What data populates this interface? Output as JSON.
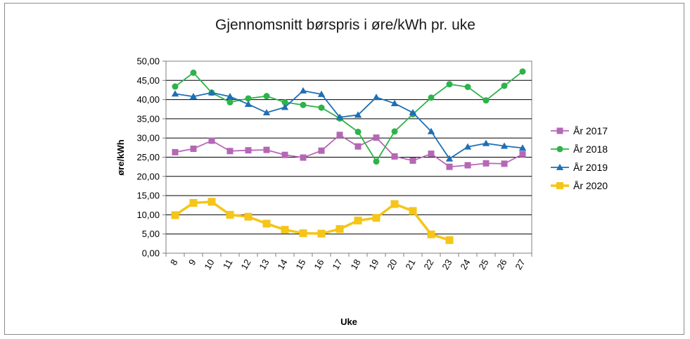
{
  "chart_data": {
    "type": "line",
    "title": "Gjennomsnitt børspris i øre/kWh pr. uke",
    "xlabel": "Uke",
    "ylabel": "øre/kWh",
    "ylim": [
      0,
      50
    ],
    "y_ticks": [
      "0,00",
      "5,00",
      "10,00",
      "15,00",
      "20,00",
      "25,00",
      "30,00",
      "35,00",
      "40,00",
      "45,00",
      "50,00"
    ],
    "grid": true,
    "legend_position": "right",
    "categories": [
      "8",
      "9",
      "10",
      "11",
      "12",
      "13",
      "14",
      "15",
      "16",
      "17",
      "18",
      "19",
      "20",
      "21",
      "22",
      "23",
      "24",
      "25",
      "26",
      "27"
    ],
    "series": [
      {
        "name": "År 2017",
        "color": "#b567b5",
        "marker": "square",
        "values": [
          26.3,
          27.2,
          29.3,
          26.6,
          26.8,
          26.9,
          25.6,
          24.9,
          26.7,
          30.8,
          27.8,
          30.1,
          25.2,
          24.1,
          25.9,
          22.5,
          22.9,
          23.4,
          23.3,
          25.8
        ]
      },
      {
        "name": "År 2018",
        "color": "#2eb24a",
        "marker": "circle",
        "values": [
          43.4,
          47.0,
          41.8,
          39.3,
          40.3,
          40.9,
          39.3,
          38.6,
          37.9,
          35.1,
          31.6,
          23.9,
          31.7,
          36.2,
          40.5,
          44.0,
          43.3,
          39.8,
          43.6,
          47.3
        ]
      },
      {
        "name": "År 2019",
        "color": "#1f6fb5",
        "marker": "triangle",
        "values": [
          41.5,
          40.8,
          41.8,
          40.8,
          38.8,
          36.6,
          38.0,
          42.3,
          41.4,
          35.4,
          36.0,
          40.6,
          39.0,
          36.6,
          31.7,
          24.6,
          27.7,
          28.6,
          27.9,
          27.4
        ]
      },
      {
        "name": "År 2020",
        "color": "#f5c518",
        "marker": "square",
        "values": [
          9.9,
          13.1,
          13.4,
          10.0,
          9.5,
          7.7,
          6.1,
          5.2,
          5.1,
          6.3,
          8.5,
          9.2,
          12.8,
          11.0,
          4.9,
          3.4,
          null,
          null,
          null,
          null
        ]
      }
    ]
  }
}
